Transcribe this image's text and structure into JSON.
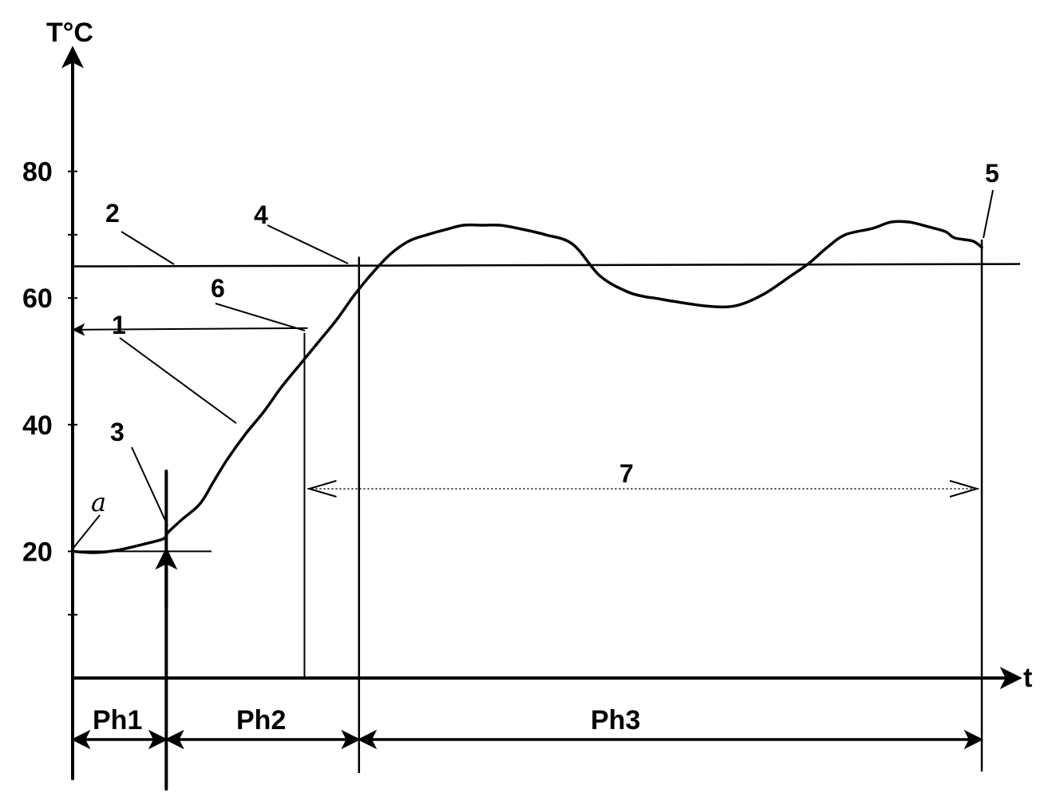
{
  "chart_data": {
    "type": "line",
    "title": "",
    "ylabel": "T°C",
    "xlabel": "t",
    "ylim": [
      0,
      100
    ],
    "xlim": [
      0,
      100
    ],
    "yticks": [
      {
        "value": 80,
        "label": "80"
      },
      {
        "value": 70,
        "label": ""
      },
      {
        "value": 60,
        "label": "60"
      },
      {
        "value": 40,
        "label": "40"
      },
      {
        "value": 20,
        "label": "20"
      },
      {
        "value": 10,
        "label": ""
      }
    ],
    "series": [
      {
        "x": [
          0,
          2.5,
          5,
          8,
          10,
          10.5,
          12,
          14,
          15.5,
          17,
          19,
          21,
          23,
          25,
          27,
          29,
          31,
          33,
          35,
          37,
          39,
          41,
          43,
          45,
          47,
          49,
          52,
          55,
          58,
          61,
          63,
          64,
          66,
          70,
          73,
          76,
          79,
          81,
          83,
          85,
          88,
          90,
          92,
          94,
          96,
          97,
          99,
          100
        ],
        "y": [
          20,
          19.8,
          20.2,
          21.2,
          22,
          23,
          25,
          27.5,
          31,
          34.5,
          38.5,
          42,
          46,
          49.5,
          53,
          56.5,
          60.5,
          64,
          67,
          69,
          70,
          70.8,
          71.5,
          71.5,
          71.5,
          71,
          70,
          68.5,
          63.5,
          61,
          60.2,
          60,
          59.5,
          58.7,
          58.8,
          60.6,
          63.5,
          65.5,
          68,
          70,
          71,
          72,
          72,
          71.3,
          70.5,
          69.5,
          69,
          68
        ]
      }
    ],
    "setpoint": 65,
    "intermediate_level": 55,
    "x_markers": {
      "ph1_end": 10.3,
      "level6": 25.5,
      "ph2_end": 31.5,
      "end": 100
    },
    "annotations": [
      "1",
      "2",
      "3",
      "4",
      "5",
      "6",
      "7",
      "a"
    ],
    "phases": [
      "Ph1",
      "Ph2",
      "Ph3"
    ]
  }
}
